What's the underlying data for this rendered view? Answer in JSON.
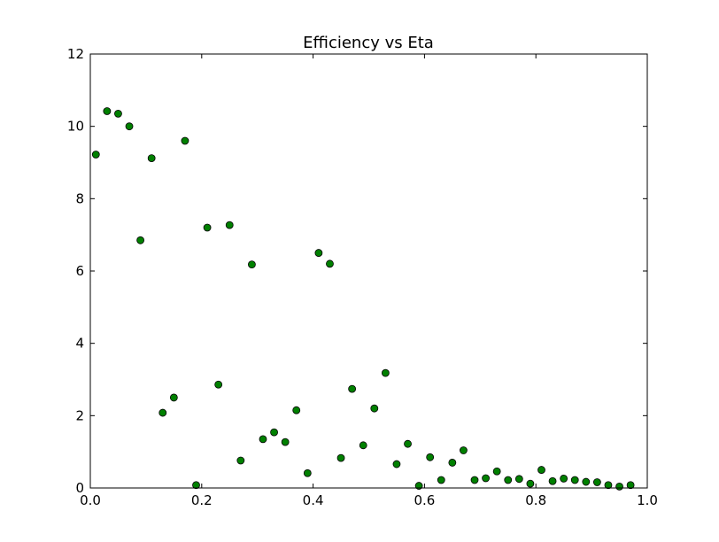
{
  "chart_data": {
    "type": "scatter",
    "title": "Efficiency vs Eta",
    "xlabel": "",
    "ylabel": "",
    "xlim": [
      0.0,
      1.0
    ],
    "ylim": [
      0,
      12
    ],
    "xticks": [
      "0.0",
      "0.2",
      "0.4",
      "0.6",
      "0.8",
      "1.0"
    ],
    "yticks": [
      "0",
      "2",
      "4",
      "6",
      "8",
      "10",
      "12"
    ],
    "grid": false,
    "legend": "none",
    "marker_color": "#008000",
    "marker_edge_color": "#000000",
    "x": [
      0.01,
      0.03,
      0.05,
      0.07,
      0.09,
      0.11,
      0.13,
      0.15,
      0.17,
      0.19,
      0.21,
      0.23,
      0.25,
      0.27,
      0.29,
      0.31,
      0.33,
      0.35,
      0.37,
      0.39,
      0.41,
      0.43,
      0.45,
      0.47,
      0.49,
      0.51,
      0.53,
      0.55,
      0.57,
      0.59,
      0.61,
      0.63,
      0.65,
      0.67,
      0.69,
      0.71,
      0.73,
      0.75,
      0.77,
      0.79,
      0.81,
      0.83,
      0.85,
      0.87,
      0.89,
      0.91,
      0.93,
      0.95,
      0.97
    ],
    "y": [
      9.22,
      10.42,
      10.35,
      10.0,
      6.85,
      9.12,
      2.08,
      2.5,
      9.6,
      0.08,
      7.2,
      2.86,
      7.27,
      0.76,
      6.18,
      1.35,
      1.54,
      1.27,
      2.15,
      0.41,
      6.5,
      6.2,
      0.83,
      2.74,
      1.18,
      2.2,
      3.18,
      0.66,
      1.22,
      0.06,
      0.85,
      0.22,
      0.7,
      1.04,
      0.22,
      0.27,
      0.46,
      0.22,
      0.25,
      0.12,
      0.5,
      0.19,
      0.26,
      0.22,
      0.17,
      0.16,
      0.08,
      0.04,
      0.08
    ]
  }
}
